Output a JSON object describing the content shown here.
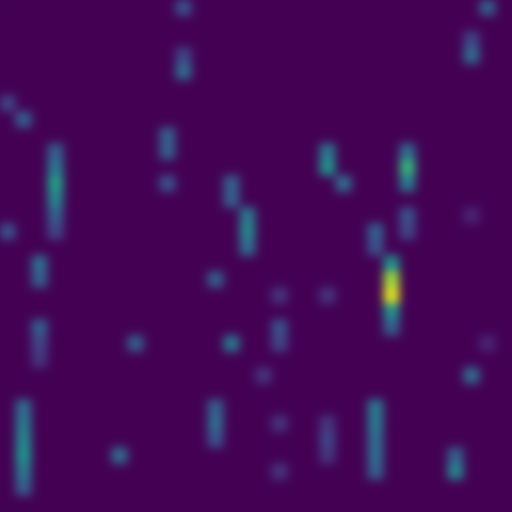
{
  "chart_data": {
    "type": "heatmap",
    "color": "viridis",
    "tick_labels": false,
    "zlim": [
      0,
      1
    ],
    "z": [
      [
        0,
        0,
        0,
        0,
        0,
        0,
        0,
        0,
        0,
        0,
        0,
        0.25,
        0,
        0,
        0,
        0,
        0,
        0,
        0,
        0,
        0,
        0,
        0,
        0,
        0,
        0,
        0,
        0,
        0,
        0,
        0.3,
        0
      ],
      [
        0,
        0,
        0,
        0,
        0,
        0,
        0,
        0,
        0,
        0,
        0,
        0,
        0,
        0,
        0,
        0,
        0,
        0,
        0,
        0,
        0,
        0,
        0,
        0,
        0,
        0,
        0,
        0,
        0,
        0,
        0,
        0
      ],
      [
        0,
        0,
        0,
        0,
        0,
        0,
        0,
        0,
        0,
        0,
        0,
        0,
        0,
        0,
        0,
        0,
        0,
        0,
        0,
        0,
        0,
        0,
        0,
        0,
        0,
        0,
        0,
        0,
        0,
        0.2,
        0,
        0
      ],
      [
        0,
        0,
        0,
        0,
        0,
        0,
        0,
        0,
        0,
        0,
        0,
        0.2,
        0,
        0,
        0,
        0,
        0,
        0,
        0,
        0,
        0,
        0,
        0,
        0,
        0,
        0,
        0,
        0,
        0,
        0.35,
        0,
        0
      ],
      [
        0,
        0,
        0,
        0,
        0,
        0,
        0,
        0,
        0,
        0,
        0,
        0.35,
        0,
        0,
        0,
        0,
        0,
        0,
        0,
        0,
        0,
        0,
        0,
        0,
        0,
        0,
        0,
        0,
        0,
        0,
        0,
        0
      ],
      [
        0,
        0,
        0,
        0,
        0,
        0,
        0,
        0,
        0,
        0,
        0,
        0,
        0,
        0,
        0,
        0,
        0,
        0,
        0,
        0,
        0,
        0,
        0,
        0,
        0,
        0,
        0,
        0,
        0,
        0,
        0,
        0
      ],
      [
        0.2,
        0,
        0,
        0,
        0,
        0,
        0,
        0,
        0,
        0,
        0,
        0,
        0,
        0,
        0,
        0,
        0,
        0,
        0,
        0,
        0,
        0,
        0,
        0,
        0,
        0,
        0,
        0,
        0,
        0,
        0,
        0
      ],
      [
        0,
        0.3,
        0,
        0,
        0,
        0,
        0,
        0,
        0,
        0,
        0,
        0,
        0,
        0,
        0,
        0,
        0,
        0,
        0,
        0,
        0,
        0,
        0,
        0,
        0,
        0,
        0,
        0,
        0,
        0,
        0,
        0
      ],
      [
        0,
        0,
        0,
        0,
        0,
        0,
        0,
        0,
        0,
        0,
        0.3,
        0,
        0,
        0,
        0,
        0,
        0,
        0,
        0,
        0,
        0,
        0,
        0,
        0,
        0,
        0,
        0,
        0,
        0,
        0,
        0,
        0
      ],
      [
        0,
        0,
        0,
        0.3,
        0,
        0,
        0,
        0,
        0,
        0,
        0.3,
        0,
        0,
        0,
        0,
        0,
        0,
        0,
        0,
        0,
        0.4,
        0,
        0,
        0,
        0,
        0.35,
        0,
        0,
        0,
        0,
        0,
        0
      ],
      [
        0,
        0,
        0,
        0.4,
        0,
        0,
        0,
        0,
        0,
        0,
        0,
        0,
        0,
        0,
        0,
        0,
        0,
        0,
        0,
        0,
        0.5,
        0,
        0,
        0,
        0,
        0.65,
        0,
        0,
        0,
        0,
        0,
        0
      ],
      [
        0,
        0,
        0,
        0.55,
        0,
        0,
        0,
        0,
        0,
        0,
        0.25,
        0,
        0,
        0,
        0.3,
        0,
        0,
        0,
        0,
        0,
        0,
        0.35,
        0,
        0,
        0,
        0.4,
        0,
        0,
        0,
        0,
        0,
        0
      ],
      [
        0,
        0,
        0,
        0.45,
        0,
        0,
        0,
        0,
        0,
        0,
        0,
        0,
        0,
        0,
        0.3,
        0,
        0,
        0,
        0,
        0,
        0,
        0,
        0,
        0,
        0,
        0,
        0,
        0,
        0,
        0,
        0,
        0
      ],
      [
        0,
        0,
        0,
        0.3,
        0,
        0,
        0,
        0,
        0,
        0,
        0,
        0,
        0,
        0,
        0,
        0.4,
        0,
        0,
        0,
        0,
        0,
        0,
        0,
        0,
        0,
        0.25,
        0,
        0,
        0,
        0.1,
        0,
        0
      ],
      [
        0.25,
        0,
        0,
        0.2,
        0,
        0,
        0,
        0,
        0,
        0,
        0,
        0,
        0,
        0,
        0,
        0.45,
        0,
        0,
        0,
        0,
        0,
        0,
        0,
        0.3,
        0,
        0.2,
        0,
        0,
        0,
        0,
        0,
        0
      ],
      [
        0,
        0,
        0,
        0,
        0,
        0,
        0,
        0,
        0,
        0,
        0,
        0,
        0,
        0,
        0,
        0.35,
        0,
        0,
        0,
        0,
        0,
        0,
        0,
        0.25,
        0,
        0,
        0,
        0,
        0,
        0,
        0,
        0
      ],
      [
        0,
        0,
        0.35,
        0,
        0,
        0,
        0,
        0,
        0,
        0,
        0,
        0,
        0,
        0,
        0,
        0,
        0,
        0,
        0,
        0,
        0,
        0,
        0,
        0,
        0.5,
        0,
        0,
        0,
        0,
        0,
        0,
        0
      ],
      [
        0,
        0,
        0.3,
        0,
        0,
        0,
        0,
        0,
        0,
        0,
        0,
        0,
        0,
        0.3,
        0,
        0,
        0,
        0,
        0,
        0,
        0,
        0,
        0,
        0,
        0.85,
        0,
        0,
        0,
        0,
        0,
        0,
        0
      ],
      [
        0,
        0,
        0,
        0,
        0,
        0,
        0,
        0,
        0,
        0,
        0,
        0,
        0,
        0,
        0,
        0,
        0,
        0.15,
        0,
        0,
        0.15,
        0,
        0,
        0,
        0.95,
        0,
        0,
        0,
        0,
        0,
        0,
        0
      ],
      [
        0,
        0,
        0,
        0,
        0,
        0,
        0,
        0,
        0,
        0,
        0,
        0,
        0,
        0,
        0,
        0,
        0,
        0,
        0,
        0,
        0,
        0,
        0,
        0,
        0.5,
        0,
        0,
        0,
        0,
        0,
        0,
        0
      ],
      [
        0,
        0,
        0.3,
        0,
        0,
        0,
        0,
        0,
        0,
        0,
        0,
        0,
        0,
        0,
        0,
        0,
        0,
        0.25,
        0,
        0,
        0,
        0,
        0,
        0,
        0.3,
        0,
        0,
        0,
        0,
        0,
        0,
        0
      ],
      [
        0,
        0,
        0.2,
        0,
        0,
        0,
        0,
        0,
        0.3,
        0,
        0,
        0,
        0,
        0,
        0.4,
        0,
        0,
        0.2,
        0,
        0,
        0,
        0,
        0,
        0,
        0,
        0,
        0,
        0,
        0,
        0,
        0.1,
        0
      ],
      [
        0,
        0,
        0.15,
        0,
        0,
        0,
        0,
        0,
        0,
        0,
        0,
        0,
        0,
        0,
        0,
        0,
        0,
        0,
        0,
        0,
        0,
        0,
        0,
        0,
        0,
        0,
        0,
        0,
        0,
        0,
        0,
        0
      ],
      [
        0,
        0,
        0,
        0,
        0,
        0,
        0,
        0,
        0,
        0,
        0,
        0,
        0,
        0,
        0,
        0,
        0.15,
        0,
        0,
        0,
        0,
        0,
        0,
        0,
        0,
        0,
        0,
        0,
        0,
        0.35,
        0,
        0
      ],
      [
        0,
        0,
        0,
        0,
        0,
        0,
        0,
        0,
        0,
        0,
        0,
        0,
        0,
        0,
        0,
        0,
        0,
        0,
        0,
        0,
        0,
        0,
        0,
        0,
        0,
        0,
        0,
        0,
        0,
        0,
        0,
        0
      ],
      [
        0,
        0.35,
        0,
        0,
        0,
        0,
        0,
        0,
        0,
        0,
        0,
        0,
        0,
        0.3,
        0,
        0,
        0,
        0,
        0,
        0,
        0,
        0,
        0,
        0.4,
        0,
        0,
        0,
        0,
        0,
        0,
        0,
        0
      ],
      [
        0,
        0.4,
        0,
        0,
        0,
        0,
        0,
        0,
        0,
        0,
        0,
        0,
        0,
        0.35,
        0,
        0,
        0,
        0.15,
        0,
        0,
        0.15,
        0,
        0,
        0.4,
        0,
        0,
        0,
        0,
        0,
        0,
        0,
        0
      ],
      [
        0,
        0.45,
        0,
        0,
        0,
        0,
        0,
        0,
        0,
        0,
        0,
        0,
        0,
        0.25,
        0,
        0,
        0,
        0,
        0,
        0,
        0.2,
        0,
        0,
        0.35,
        0,
        0,
        0,
        0,
        0,
        0,
        0,
        0
      ],
      [
        0,
        0.5,
        0,
        0,
        0,
        0,
        0,
        0.35,
        0,
        0,
        0,
        0,
        0,
        0,
        0,
        0,
        0,
        0,
        0,
        0,
        0.15,
        0,
        0,
        0.35,
        0,
        0,
        0,
        0,
        0.3,
        0,
        0,
        0
      ],
      [
        0,
        0.4,
        0,
        0,
        0,
        0,
        0,
        0,
        0,
        0,
        0,
        0,
        0,
        0,
        0,
        0,
        0,
        0.15,
        0,
        0,
        0,
        0,
        0,
        0.3,
        0,
        0,
        0,
        0,
        0.45,
        0,
        0,
        0
      ],
      [
        0,
        0.3,
        0,
        0,
        0,
        0,
        0,
        0,
        0,
        0,
        0,
        0,
        0,
        0,
        0,
        0,
        0,
        0,
        0,
        0,
        0,
        0,
        0,
        0,
        0,
        0,
        0,
        0,
        0,
        0,
        0,
        0
      ],
      [
        0,
        0,
        0,
        0,
        0,
        0,
        0,
        0,
        0,
        0,
        0,
        0,
        0,
        0,
        0,
        0,
        0,
        0,
        0,
        0,
        0,
        0,
        0,
        0,
        0,
        0,
        0,
        0,
        0,
        0,
        0,
        0
      ]
    ]
  }
}
